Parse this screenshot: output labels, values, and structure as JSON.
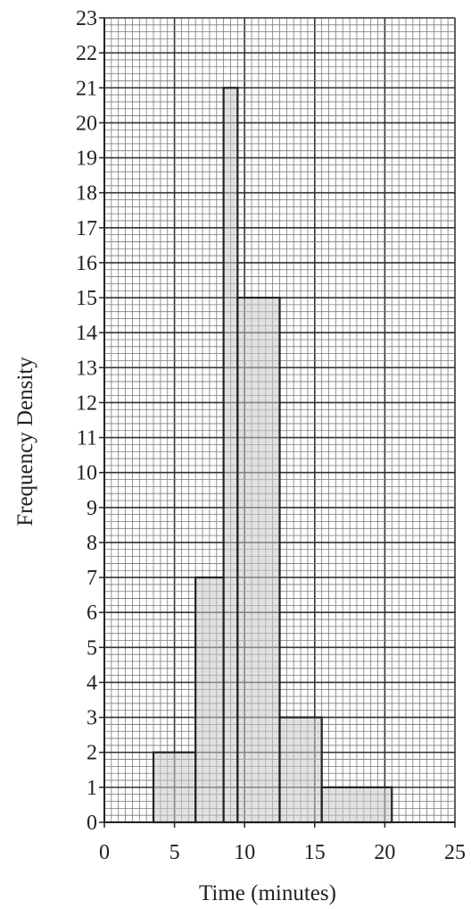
{
  "chart_data": {
    "type": "bar",
    "subtype": "histogram",
    "title": "",
    "xlabel": "Time (minutes)",
    "ylabel": "Frequency Density",
    "xlim": [
      0,
      25
    ],
    "ylim": [
      0,
      23
    ],
    "x_ticks": [
      0,
      5,
      10,
      15,
      20,
      25
    ],
    "y_ticks": [
      0,
      1,
      2,
      3,
      4,
      5,
      6,
      7,
      8,
      9,
      10,
      11,
      12,
      13,
      14,
      15,
      16,
      17,
      18,
      19,
      20,
      21,
      22,
      23
    ],
    "grid": true,
    "bins": [
      {
        "start": 3.5,
        "end": 6.5,
        "value": 2
      },
      {
        "start": 6.5,
        "end": 8.5,
        "value": 7
      },
      {
        "start": 8.5,
        "end": 9.5,
        "value": 21
      },
      {
        "start": 9.5,
        "end": 12.5,
        "value": 15
      },
      {
        "start": 12.5,
        "end": 15.5,
        "value": 3
      },
      {
        "start": 15.5,
        "end": 20.5,
        "value": 1
      }
    ],
    "colors": {
      "bar_fill": "#c8c8c8",
      "bar_stroke": "#222222",
      "grid_minor": "#7a7a7a",
      "grid_major": "#333333",
      "axis": "#222222"
    }
  }
}
